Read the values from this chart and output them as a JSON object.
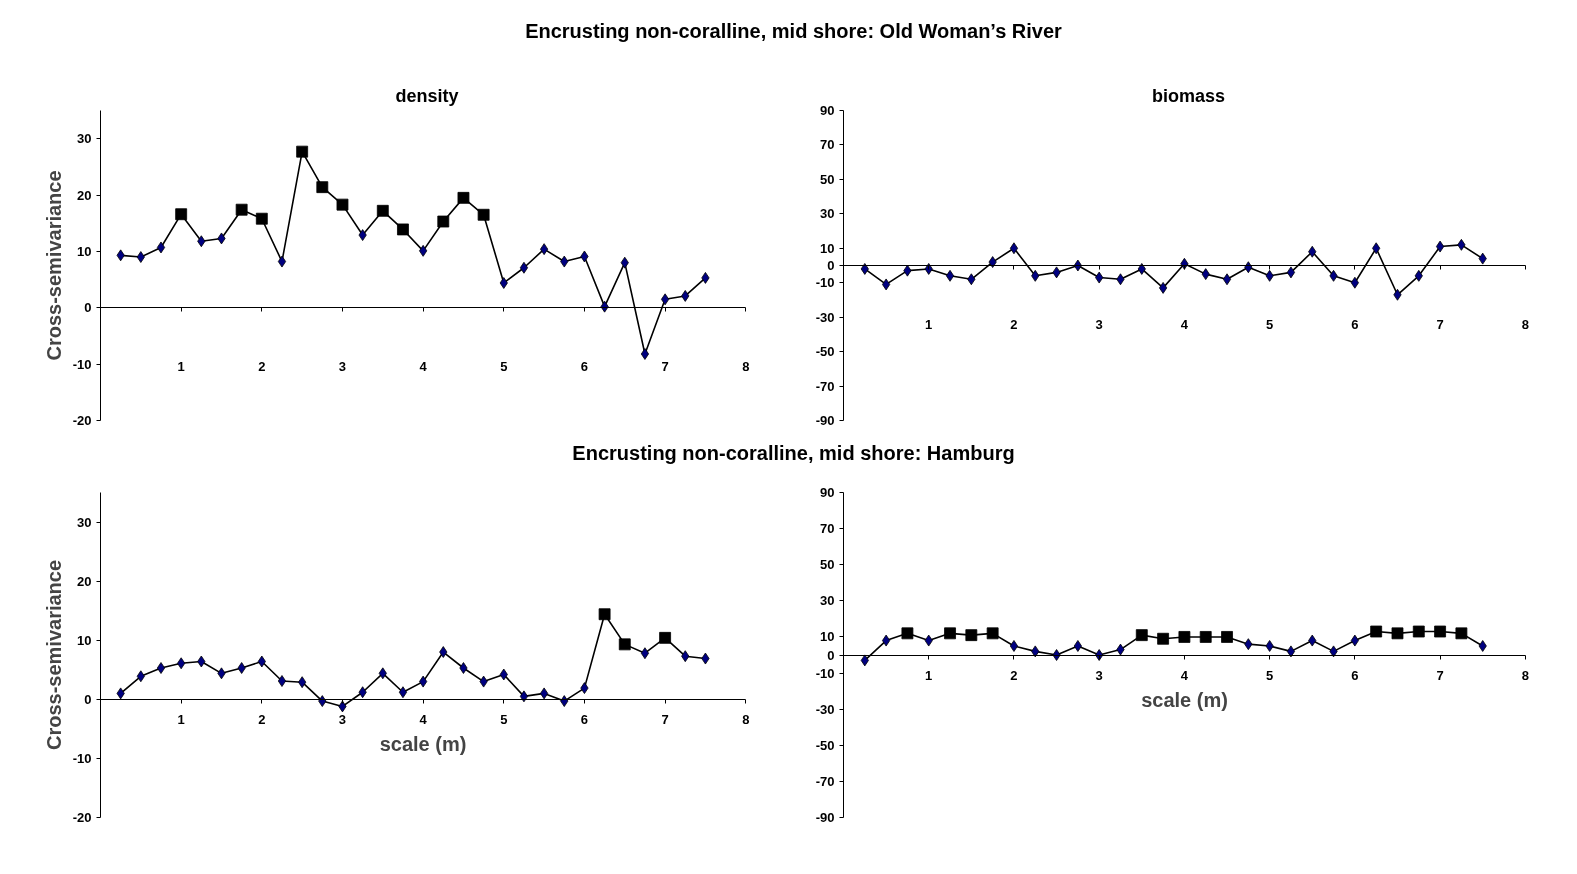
{
  "chart_data": [
    {
      "type": "line",
      "title": "Encrusting non-coralline, mid shore: Old Woman’s River",
      "subtitle": "density",
      "ylabel": "Cross-semivariance",
      "xlim": [
        0,
        8
      ],
      "xticks": [
        1,
        2,
        3,
        4,
        5,
        6,
        7,
        8
      ],
      "ylim": [
        -20,
        35
      ],
      "yticks": [
        -20,
        -10,
        0,
        10,
        20,
        30
      ],
      "x": [
        0.25,
        0.5,
        0.75,
        1.0,
        1.25,
        1.5,
        1.75,
        2.0,
        2.25,
        2.5,
        2.75,
        3.0,
        3.25,
        3.5,
        3.75,
        4.0,
        4.25,
        4.5,
        4.75,
        5.0,
        5.25,
        5.5,
        5.75,
        6.0,
        6.25,
        6.5,
        6.75,
        7.0,
        7.25,
        7.5
      ],
      "series": [
        {
          "type": "line",
          "color": "#000000",
          "marker": "none",
          "values": [
            9.3,
            9.0,
            10.7,
            16.6,
            11.8,
            12.3,
            17.4,
            15.8,
            8.2,
            27.7,
            21.4,
            18.3,
            12.9,
            17.2,
            13.9,
            10.1,
            15.3,
            19.5,
            16.5,
            4.4,
            7.1,
            10.4,
            8.2,
            9.1,
            0.2,
            8.0,
            -8.2,
            1.5,
            2.1,
            5.3
          ]
        },
        {
          "type": "scatter",
          "color": "#000080",
          "marker": "diamond",
          "x": [
            0.25,
            0.5,
            0.75,
            1.25,
            1.5,
            2.25,
            3.25,
            4.0,
            5.0,
            5.25,
            5.5,
            5.75,
            6.0,
            6.25,
            6.5,
            6.75,
            7.0,
            7.25,
            7.5
          ],
          "values": [
            9.3,
            9.0,
            10.7,
            11.8,
            12.3,
            8.2,
            12.9,
            10.1,
            4.4,
            7.1,
            10.4,
            8.2,
            9.1,
            0.2,
            8.0,
            -8.2,
            1.5,
            2.1,
            5.3
          ]
        },
        {
          "type": "scatter",
          "color": "#000000",
          "marker": "square",
          "x": [
            1.0,
            1.75,
            2.0,
            2.5,
            2.75,
            3.0,
            3.5,
            3.75,
            4.25,
            4.5,
            4.75
          ],
          "values": [
            16.6,
            17.4,
            15.8,
            27.7,
            21.4,
            18.3,
            17.2,
            13.9,
            15.3,
            19.5,
            16.5
          ]
        }
      ]
    },
    {
      "type": "line",
      "title": "biomass",
      "xlim": [
        0,
        8
      ],
      "xticks": [
        1,
        2,
        3,
        4,
        5,
        6,
        7,
        8
      ],
      "ylim": [
        -90,
        90
      ],
      "yticks": [
        -90,
        -70,
        -50,
        -30,
        -10,
        0,
        10,
        30,
        50,
        70,
        90
      ],
      "x": [
        0.25,
        0.5,
        0.75,
        1.0,
        1.25,
        1.5,
        1.75,
        2.0,
        2.25,
        2.5,
        2.75,
        3.0,
        3.25,
        3.5,
        3.75,
        4.0,
        4.25,
        4.5,
        4.75,
        5.0,
        5.25,
        5.5,
        5.75,
        6.0,
        6.25,
        6.5,
        6.75,
        7.0,
        7.25,
        7.5
      ],
      "series": [
        {
          "type": "line",
          "color": "#000000",
          "marker": "none",
          "values": [
            -2,
            -11,
            -3,
            -2,
            -6,
            -8,
            2,
            10,
            -6,
            -4,
            0,
            -7,
            -8,
            -2,
            -13,
            1,
            -5,
            -8,
            -1,
            -6,
            -4,
            8,
            -6,
            -10,
            10,
            -17,
            -6,
            11,
            12,
            4
          ]
        },
        {
          "type": "scatter",
          "color": "#000080",
          "marker": "diamond",
          "values": [
            -2,
            -11,
            -3,
            -2,
            -6,
            -8,
            2,
            10,
            -6,
            -4,
            0,
            -7,
            -8,
            -2,
            -13,
            1,
            -5,
            -8,
            -1,
            -6,
            -4,
            8,
            -6,
            -10,
            10,
            -17,
            -6,
            11,
            12,
            4
          ]
        }
      ]
    },
    {
      "type": "line",
      "title": "Encrusting non-coralline, mid shore: Hamburg",
      "xlabel": "scale (m)",
      "ylabel": "Cross-semivariance",
      "xlim": [
        0,
        8
      ],
      "xticks": [
        1,
        2,
        3,
        4,
        5,
        6,
        7,
        8
      ],
      "ylim": [
        -20,
        35
      ],
      "yticks": [
        -20,
        -10,
        0,
        10,
        20,
        30
      ],
      "x": [
        0.25,
        0.5,
        0.75,
        1.0,
        1.25,
        1.5,
        1.75,
        2.0,
        2.25,
        2.5,
        2.75,
        3.0,
        3.25,
        3.5,
        3.75,
        4.0,
        4.25,
        4.5,
        4.75,
        5.0,
        5.25,
        5.5,
        5.75,
        6.0,
        6.25,
        6.5,
        6.75,
        7.0,
        7.25,
        7.5
      ],
      "series": [
        {
          "type": "line",
          "color": "#000000",
          "marker": "none",
          "values": [
            1.0,
            3.9,
            5.3,
            6.1,
            6.4,
            4.4,
            5.3,
            6.4,
            3.1,
            2.9,
            -0.3,
            -1.2,
            1.2,
            4.4,
            1.2,
            3.0,
            8.0,
            5.3,
            3.0,
            4.2,
            0.5,
            1.0,
            -0.3,
            1.9,
            14.4,
            9.3,
            7.8,
            10.4,
            7.3,
            6.9
          ]
        },
        {
          "type": "scatter",
          "color": "#000080",
          "marker": "diamond",
          "x": [
            0.25,
            0.5,
            0.75,
            1.0,
            1.25,
            1.5,
            1.75,
            2.0,
            2.25,
            2.5,
            2.75,
            3.0,
            3.25,
            3.5,
            3.75,
            4.0,
            4.25,
            4.5,
            4.75,
            5.0,
            5.25,
            5.5,
            5.75,
            6.0,
            6.75,
            7.25,
            7.5
          ],
          "values": [
            1.0,
            3.9,
            5.3,
            6.1,
            6.4,
            4.4,
            5.3,
            6.4,
            3.1,
            2.9,
            -0.3,
            -1.2,
            1.2,
            4.4,
            1.2,
            3.0,
            8.0,
            5.3,
            3.0,
            4.2,
            0.5,
            1.0,
            -0.3,
            1.9,
            7.8,
            7.3,
            6.9
          ]
        },
        {
          "type": "scatter",
          "color": "#000000",
          "marker": "square",
          "x": [
            6.25,
            6.5,
            7.0
          ],
          "values": [
            14.4,
            9.3,
            10.4
          ]
        }
      ]
    },
    {
      "type": "line",
      "xlabel": "scale (m)",
      "xlim": [
        0,
        8
      ],
      "xticks": [
        1,
        2,
        3,
        4,
        5,
        6,
        7,
        8
      ],
      "ylim": [
        -90,
        90
      ],
      "yticks": [
        -90,
        -70,
        -50,
        -30,
        -10,
        0,
        10,
        30,
        50,
        70,
        90
      ],
      "x": [
        0.25,
        0.5,
        0.75,
        1.0,
        1.25,
        1.5,
        1.75,
        2.0,
        2.25,
        2.5,
        2.75,
        3.0,
        3.25,
        3.5,
        3.75,
        4.0,
        4.25,
        4.5,
        4.75,
        5.0,
        5.25,
        5.5,
        5.75,
        6.0,
        6.25,
        6.5,
        6.75,
        7.0,
        7.25,
        7.5
      ],
      "series": [
        {
          "type": "line",
          "color": "#000000",
          "marker": "none",
          "values": [
            -3,
            8,
            12,
            8,
            12,
            11,
            12,
            5,
            2,
            0,
            5,
            0,
            3,
            11,
            9,
            10,
            10,
            10,
            6,
            5,
            2,
            8,
            2,
            8,
            13,
            12,
            13,
            13,
            12,
            5
          ]
        },
        {
          "type": "scatter",
          "color": "#000080",
          "marker": "diamond",
          "x": [
            0.25,
            0.5,
            1.0,
            2.0,
            2.25,
            2.5,
            2.75,
            3.0,
            3.25,
            4.75,
            5.0,
            5.25,
            5.5,
            5.75,
            6.0,
            7.5
          ],
          "values": [
            -3,
            8,
            8,
            5,
            2,
            0,
            5,
            0,
            3,
            6,
            5,
            2,
            8,
            2,
            8,
            5
          ]
        },
        {
          "type": "scatter",
          "color": "#000000",
          "marker": "square",
          "x": [
            0.75,
            1.25,
            1.5,
            1.75,
            3.5,
            3.75,
            4.0,
            4.25,
            4.5,
            6.25,
            6.5,
            6.75,
            7.0,
            7.25
          ],
          "values": [
            12,
            12,
            11,
            12,
            11,
            9,
            10,
            10,
            10,
            13,
            12,
            13,
            13,
            12
          ]
        }
      ]
    }
  ]
}
